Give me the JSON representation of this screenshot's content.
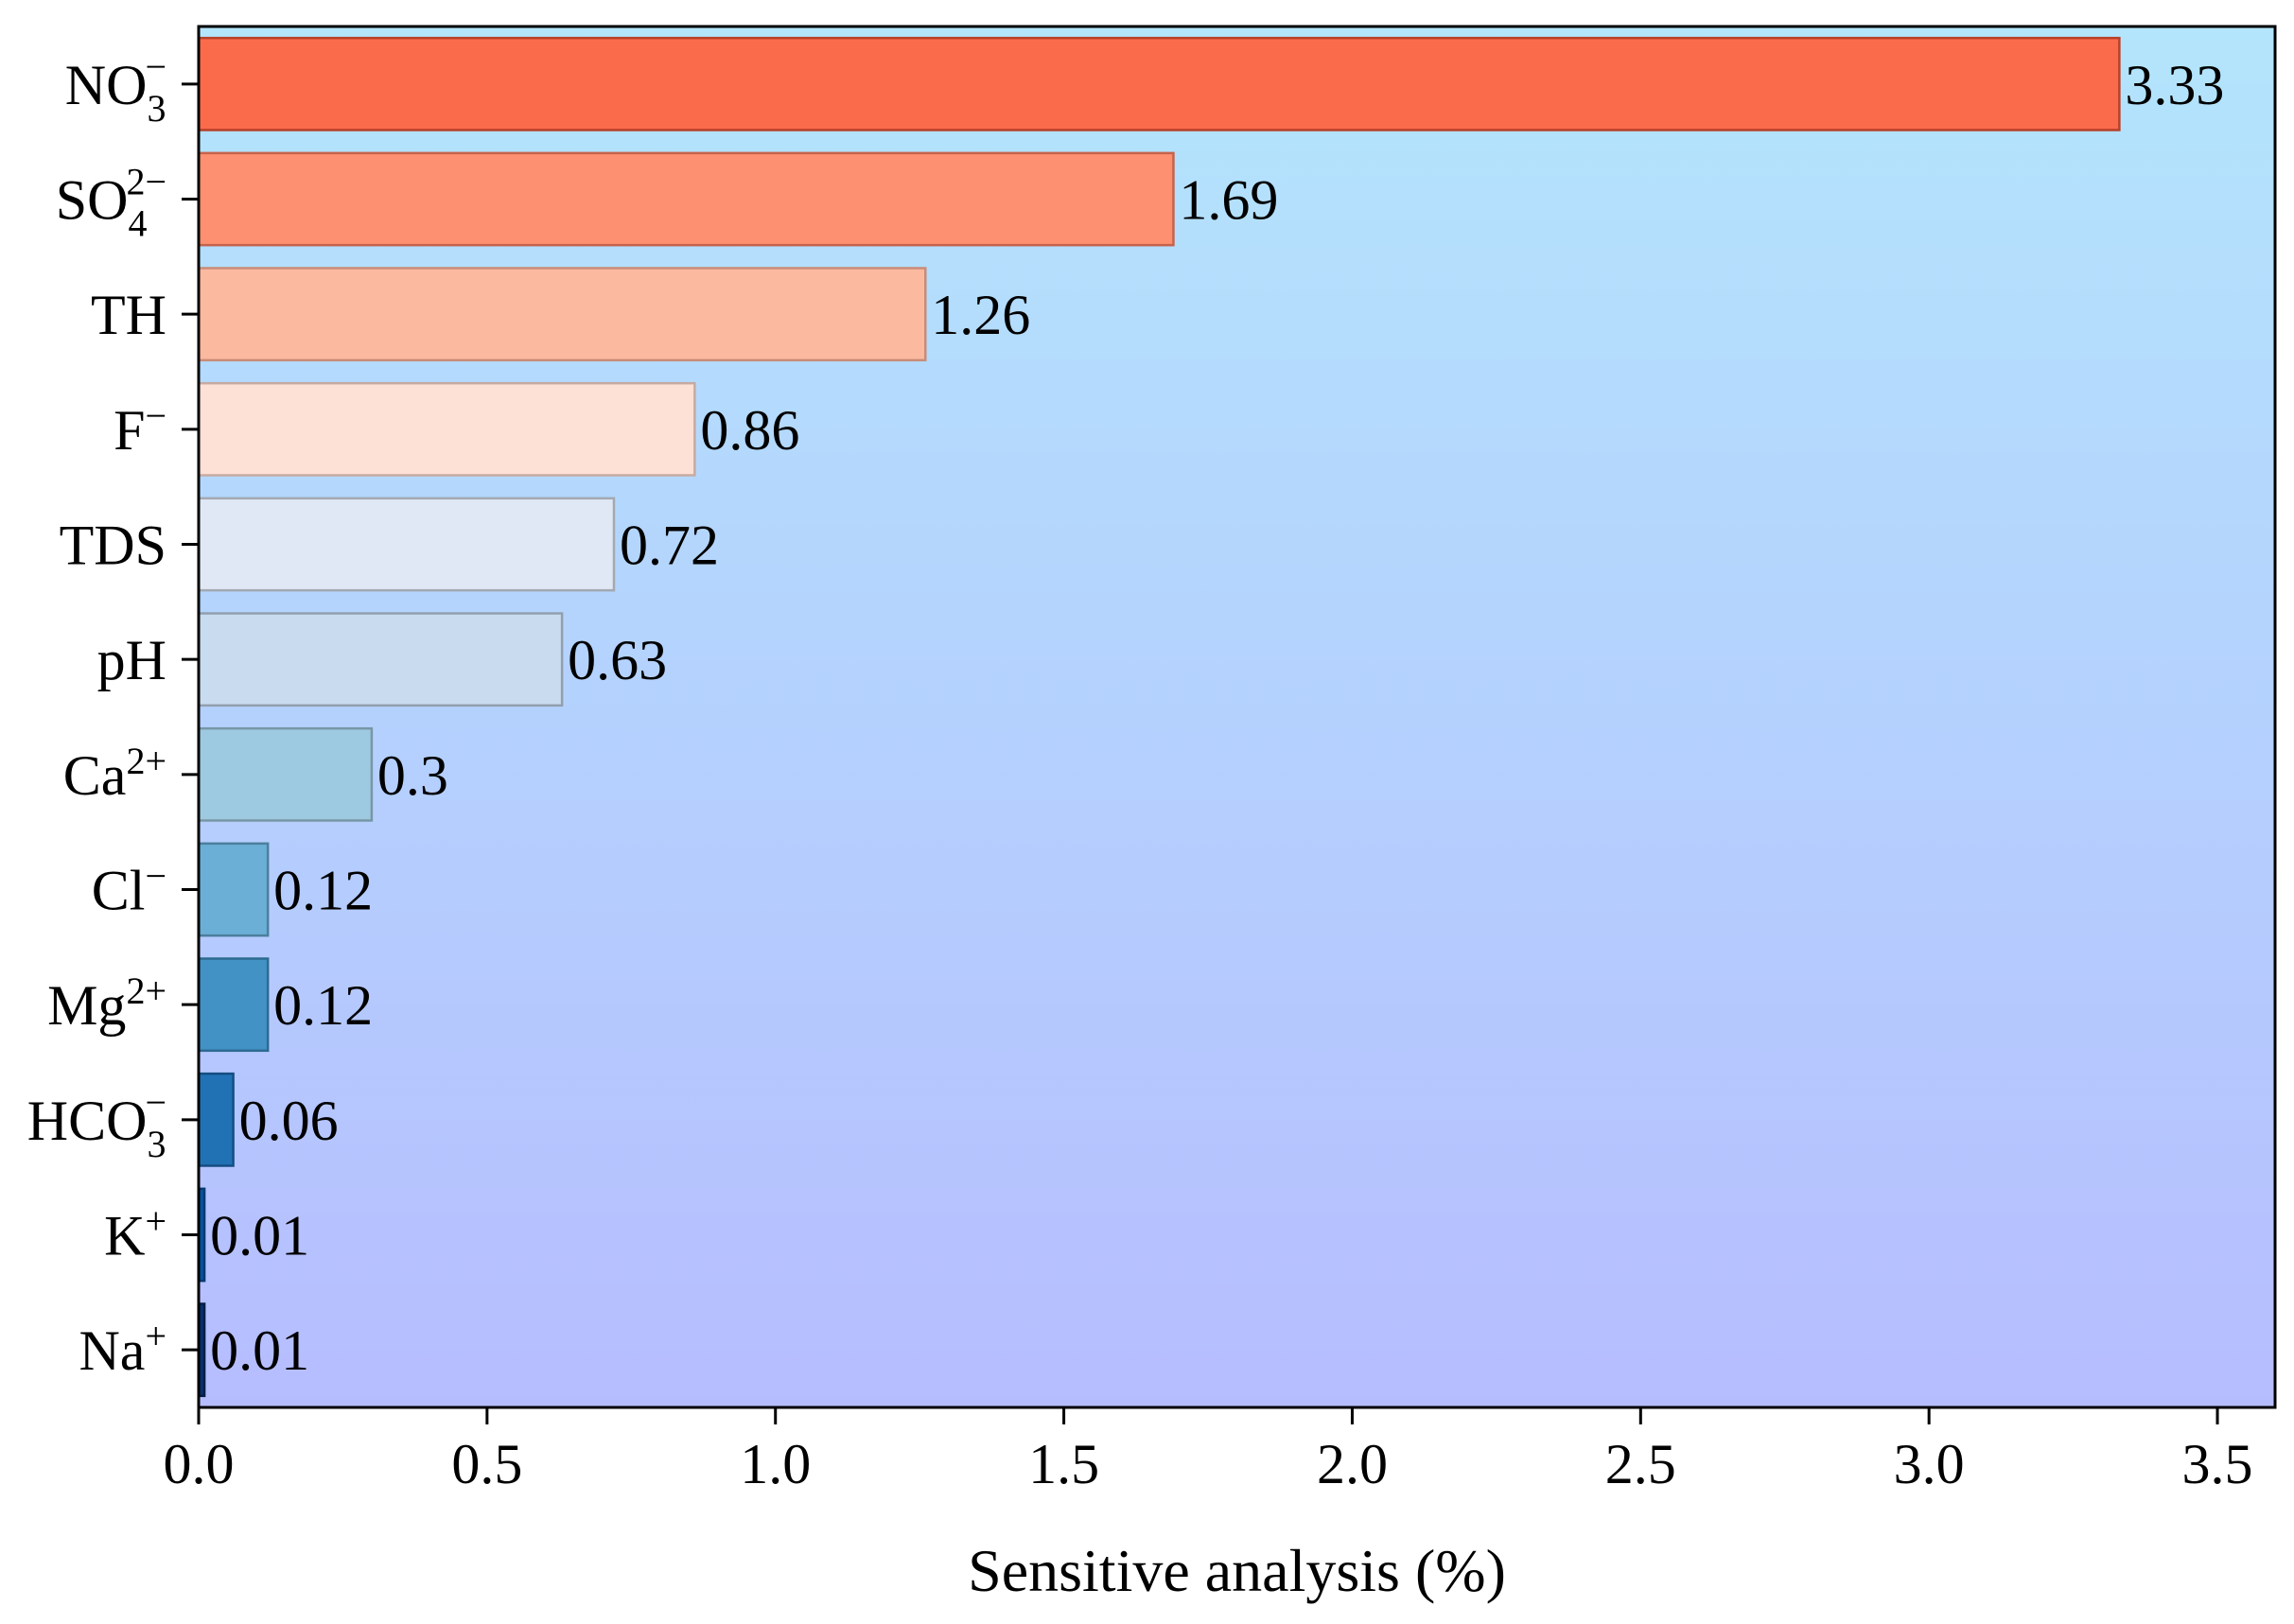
{
  "chart_data": {
    "type": "bar",
    "orientation": "horizontal",
    "title": "",
    "xlabel": "Sensitive analysis (%)",
    "ylabel": "",
    "xlim": [
      0,
      3.6
    ],
    "xticks": [
      0.0,
      0.5,
      1.0,
      1.5,
      2.0,
      2.5,
      3.0,
      3.5
    ],
    "xtick_labels": [
      "0.0",
      "0.5",
      "1.0",
      "1.5",
      "2.0",
      "2.5",
      "3.0",
      "3.5"
    ],
    "grid": false,
    "legend": "none",
    "background_gradient": [
      "#b3e5fc",
      "#b6bdff"
    ],
    "categories": [
      {
        "base": "NO",
        "sub": "3",
        "sup": "−"
      },
      {
        "base": "SO",
        "sub": "4",
        "sup": "2−"
      },
      {
        "base": "TH",
        "sub": "",
        "sup": ""
      },
      {
        "base": "F",
        "sub": "",
        "sup": "−"
      },
      {
        "base": "TDS",
        "sub": "",
        "sup": ""
      },
      {
        "base": "pH",
        "sub": "",
        "sup": ""
      },
      {
        "base": "Ca",
        "sub": "",
        "sup": "2+"
      },
      {
        "base": "Cl",
        "sub": "",
        "sup": "−"
      },
      {
        "base": "Mg",
        "sub": "",
        "sup": "2+"
      },
      {
        "base": "HCO",
        "sub": "3",
        "sup": "−"
      },
      {
        "base": "K",
        "sub": "",
        "sup": "+"
      },
      {
        "base": "Na",
        "sub": "",
        "sup": "+"
      }
    ],
    "values": [
      3.33,
      1.69,
      1.26,
      0.86,
      0.72,
      0.63,
      0.3,
      0.12,
      0.12,
      0.06,
      0.01,
      0.01
    ],
    "value_labels": [
      "3.33",
      "1.69",
      "1.26",
      "0.86",
      "0.72",
      "0.63",
      "0.3",
      "0.12",
      "0.12",
      "0.06",
      "0.01",
      "0.01"
    ],
    "bar_colors": [
      "#fa6b4c",
      "#fc9070",
      "#fbb9a0",
      "#fde0d6",
      "#dfe8f4",
      "#c8dbef",
      "#9ecae1",
      "#6baed6",
      "#4292c6",
      "#2171b5",
      "#08519c",
      "#08306b"
    ],
    "bar_edge_colors": [
      "#b8402a",
      "#c7624a",
      "#c98c78",
      "#c6aaa2",
      "#a3a9b2",
      "#929faf",
      "#7897a6",
      "#4c7f9c",
      "#2d6a91",
      "#154f82",
      "#063a70",
      "#041f47"
    ]
  }
}
